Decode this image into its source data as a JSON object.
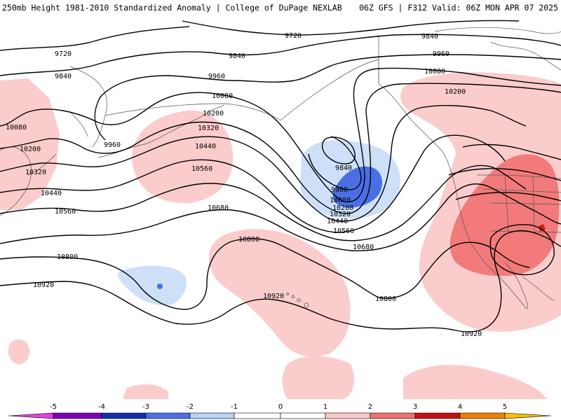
{
  "header": {
    "left": "250mb Height 1981-2010 Standardized Anomaly | College of DuPage NEXLAB",
    "right": "06Z GFS | F312 Valid: 06Z MON APR 07 2025"
  },
  "contour_labels": {
    "a": "9720",
    "b": "9720",
    "c": "9840",
    "d": "9840",
    "e": "9840",
    "f": "9960",
    "g": "9960",
    "h": "10080",
    "i": "10080",
    "j": "10200",
    "k": "10320",
    "l": "10440",
    "m": "10560",
    "n": "10680",
    "o": "10800",
    "p": "10920",
    "q": "10080",
    "r": "10200",
    "s": "10320",
    "t": "10440",
    "u": "10560",
    "v": "9840",
    "w": "9960",
    "x": "10080",
    "y": "10200",
    "z": "10320",
    "aa": "10440",
    "ab": "10560",
    "ac": "10680",
    "ad": "10800",
    "ae": "10920",
    "af": "9960",
    "ag": "10080",
    "ah": "10200",
    "ai": "10800",
    "aj": "10920"
  },
  "colorbar": {
    "ticks": [
      "-5",
      "-4",
      "-3",
      "-2",
      "-1",
      "0",
      "1",
      "2",
      "3",
      "4",
      "5"
    ],
    "colors": {
      "neg5": "#e040e0",
      "neg4": "#8000c0",
      "neg3": "#1030b0",
      "neg2": "#4a70e8",
      "neg1": "#b8d4f5",
      "neg0": "#ffffff",
      "pos0": "#ffffff",
      "pos1": "#fcc8c8",
      "pos2": "#f27070",
      "pos3": "#c81010",
      "pos4": "#f08000",
      "pos5": "#f8c000"
    }
  },
  "shading_colors": {
    "light_blue": "#cde0f8",
    "medium_blue": "#4a6fe5",
    "light_red": "#fbcccc",
    "medium_red": "#f27a7a",
    "dark_red": "#d41a1a"
  }
}
